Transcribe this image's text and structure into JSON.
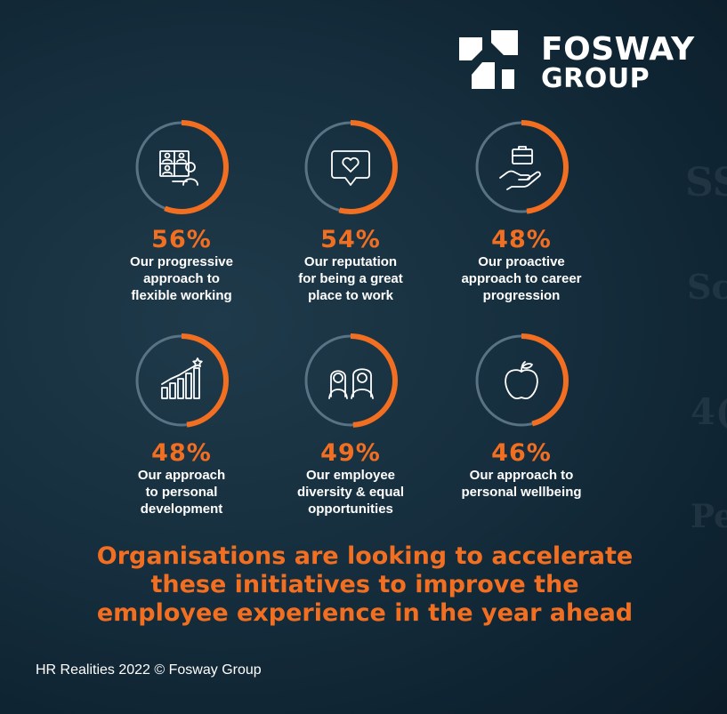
{
  "brand": {
    "name_line1": "FOSWAY",
    "name_line2": "GROUP"
  },
  "colors": {
    "accent": "#f26f21",
    "ring_track": "#5a7384",
    "background": "#132c3b",
    "text": "#ffffff"
  },
  "items": [
    {
      "percent": "56%",
      "value": 56,
      "label": "Our progressive\napproach to\nflexible working",
      "icon": "video-meeting-icon"
    },
    {
      "percent": "54%",
      "value": 54,
      "label": "Our reputation\nfor being a great\nplace to work",
      "icon": "heart-speech-bubble-icon"
    },
    {
      "percent": "48%",
      "value": 48,
      "label": "Our proactive\napproach to career\nprogression",
      "icon": "hand-briefcase-icon"
    },
    {
      "percent": "48%",
      "value": 48,
      "label": "Our approach\nto personal\ndevelopment",
      "icon": "growth-chart-star-icon"
    },
    {
      "percent": "49%",
      "value": 49,
      "label": "Our employee\ndiversity & equal\nopportunities",
      "icon": "diverse-people-icon"
    },
    {
      "percent": "46%",
      "value": 46,
      "label": "Our approach to\npersonal wellbeing",
      "icon": "apple-icon"
    }
  ],
  "headline": {
    "line1": "Organisations are looking to accelerate",
    "line2": "these initiatives to improve the",
    "line3": "employee experience in the year ahead"
  },
  "footer": "HR Realities 2022 © Fosway Group"
}
